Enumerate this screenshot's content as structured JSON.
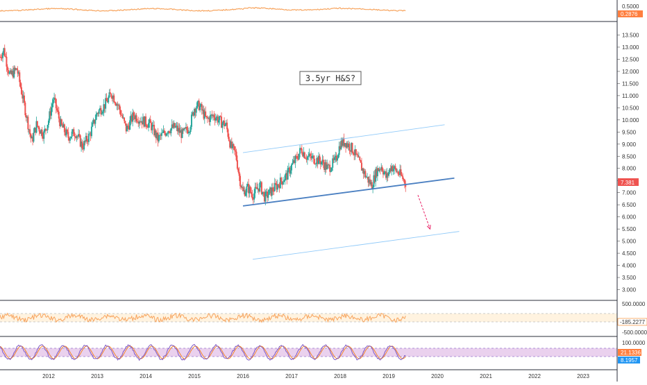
{
  "colors": {
    "up": "#26a69a",
    "down": "#ef5350",
    "osc_line": "#f7a35c",
    "stoch_k": "#7e57c2",
    "stoch_d": "#f57f17",
    "stoch_band": "#e1bee7",
    "channel": "#4a7fc1",
    "arrow": "#e91e63",
    "last_price": "#ef5350",
    "cci_value_bg": "#ffffff",
    "top_value_bg": "#ff7f3f",
    "stoch_k_bg": "#ff7f3f",
    "stoch_d_bg": "#2196f3"
  },
  "annotation": "3.5yr H&S?",
  "top_pane": {
    "labels": [
      "0.5000"
    ],
    "value": "0.2876"
  },
  "cci_pane": {
    "labels": [
      "500.0000",
      "-500.0000"
    ],
    "value": "-185.2277"
  },
  "stoch_pane": {
    "labels": [
      "100.0000"
    ],
    "value_k": "21.1336",
    "value_d": "8.1957"
  },
  "chart_data": {
    "type": "candlestick",
    "title": "",
    "xlabel": "",
    "ylabel": "",
    "x_ticks": [
      "2012",
      "2013",
      "2014",
      "2015",
      "2016",
      "2017",
      "2018",
      "2019",
      "2020",
      "2021",
      "2022",
      "2023"
    ],
    "y_ticks": [
      "13.500",
      "13.000",
      "12.500",
      "12.000",
      "11.500",
      "11.000",
      "10.500",
      "10.000",
      "9.500",
      "9.000",
      "8.500",
      "8.000",
      "7.500",
      "7.000",
      "6.500",
      "6.000",
      "5.500",
      "5.000",
      "4.500",
      "4.000",
      "3.500",
      "3.000"
    ],
    "ylim": [
      2.7,
      13.8
    ],
    "xlim": [
      2011.0,
      2023.7
    ],
    "last_price": "7.381",
    "price_path": [
      [
        2011.0,
        12.6
      ],
      [
        2011.08,
        12.9
      ],
      [
        2011.2,
        11.8
      ],
      [
        2011.35,
        12.1
      ],
      [
        2011.5,
        10.6
      ],
      [
        2011.65,
        9.1
      ],
      [
        2011.75,
        9.8
      ],
      [
        2011.9,
        9.4
      ],
      [
        2012.0,
        10.0
      ],
      [
        2012.1,
        10.9
      ],
      [
        2012.25,
        9.8
      ],
      [
        2012.4,
        9.3
      ],
      [
        2012.55,
        9.5
      ],
      [
        2012.7,
        8.9
      ],
      [
        2012.85,
        9.4
      ],
      [
        2013.0,
        10.3
      ],
      [
        2013.15,
        10.6
      ],
      [
        2013.3,
        11.1
      ],
      [
        2013.45,
        10.5
      ],
      [
        2013.6,
        9.6
      ],
      [
        2013.75,
        10.2
      ],
      [
        2013.9,
        10.0
      ],
      [
        2014.1,
        9.8
      ],
      [
        2014.25,
        9.2
      ],
      [
        2014.45,
        9.6
      ],
      [
        2014.6,
        9.7
      ],
      [
        2014.75,
        9.4
      ],
      [
        2014.9,
        9.7
      ],
      [
        2015.0,
        10.5
      ],
      [
        2015.1,
        10.6
      ],
      [
        2015.25,
        10.0
      ],
      [
        2015.4,
        10.2
      ],
      [
        2015.55,
        9.9
      ],
      [
        2015.65,
        9.8
      ],
      [
        2015.75,
        8.9
      ],
      [
        2015.85,
        8.6
      ],
      [
        2015.93,
        7.6
      ],
      [
        2016.0,
        7.0
      ],
      [
        2016.1,
        7.2
      ],
      [
        2016.2,
        6.9
      ],
      [
        2016.35,
        7.3
      ],
      [
        2016.45,
        6.8
      ],
      [
        2016.6,
        7.1
      ],
      [
        2016.75,
        7.4
      ],
      [
        2016.9,
        7.7
      ],
      [
        2017.0,
        8.1
      ],
      [
        2017.1,
        8.4
      ],
      [
        2017.2,
        8.8
      ],
      [
        2017.3,
        8.5
      ],
      [
        2017.45,
        8.4
      ],
      [
        2017.6,
        8.3
      ],
      [
        2017.75,
        8.0
      ],
      [
        2017.9,
        8.3
      ],
      [
        2018.0,
        9.0
      ],
      [
        2018.1,
        9.1
      ],
      [
        2018.25,
        8.8
      ],
      [
        2018.4,
        8.2
      ],
      [
        2018.55,
        7.6
      ],
      [
        2018.65,
        7.3
      ],
      [
        2018.75,
        7.9
      ],
      [
        2018.85,
        8.1
      ],
      [
        2018.95,
        7.6
      ],
      [
        2019.05,
        8.1
      ],
      [
        2019.15,
        7.9
      ],
      [
        2019.25,
        7.7
      ],
      [
        2019.35,
        7.4
      ]
    ],
    "channel": {
      "lower": [
        [
          2016.0,
          6.45
        ],
        [
          2020.35,
          7.6
        ]
      ],
      "upper": [
        [
          2016.0,
          8.65
        ],
        [
          2020.15,
          9.8
        ]
      ],
      "projected": [
        [
          2016.2,
          4.25
        ],
        [
          2020.45,
          5.4
        ]
      ]
    },
    "arrow": [
      [
        2019.6,
        6.9
      ],
      [
        2019.85,
        5.5
      ]
    ]
  }
}
